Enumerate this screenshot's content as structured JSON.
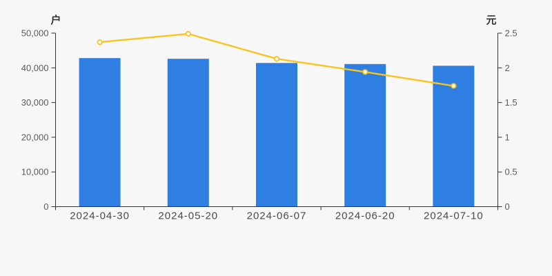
{
  "page": {
    "background": "#f7f7f7"
  },
  "chart_data": {
    "type": "bar",
    "subtype": "bar-line-dual-axis",
    "categories": [
      "2024-04-30",
      "2024-05-20",
      "2024-06-07",
      "2024-06-20",
      "2024-07-10"
    ],
    "series": [
      {
        "name": "户",
        "type": "bar",
        "axis": "left",
        "color": "#2f7fe3",
        "values": [
          42800,
          42600,
          41400,
          41100,
          40600
        ]
      },
      {
        "name": "元",
        "type": "line",
        "axis": "right",
        "color": "#fac41e",
        "marker": "hollow-circle",
        "values": [
          2.37,
          2.49,
          2.13,
          1.94,
          1.74
        ]
      }
    ],
    "left_axis": {
      "label": "户",
      "min": 0,
      "max": 50000,
      "ticks": [
        0,
        10000,
        20000,
        30000,
        40000,
        50000
      ],
      "tick_labels": [
        "0",
        "10,000",
        "20,000",
        "30,000",
        "40,000",
        "50,000"
      ]
    },
    "right_axis": {
      "label": "元",
      "min": 0,
      "max": 2.5,
      "ticks": [
        0,
        0.5,
        1,
        1.5,
        2,
        2.5
      ],
      "tick_labels": [
        "0",
        "0.5",
        "1",
        "1.5",
        "2",
        "2.5"
      ]
    },
    "grid": false,
    "legend_position": "none",
    "title": "",
    "colors": {
      "axis_line": "#333333",
      "tick_text": "#5c5c5c",
      "date_text": "#4a4a4a",
      "bar": "#2f7fe3",
      "line": "#fac41e",
      "marker_fill": "#ffffff"
    }
  }
}
